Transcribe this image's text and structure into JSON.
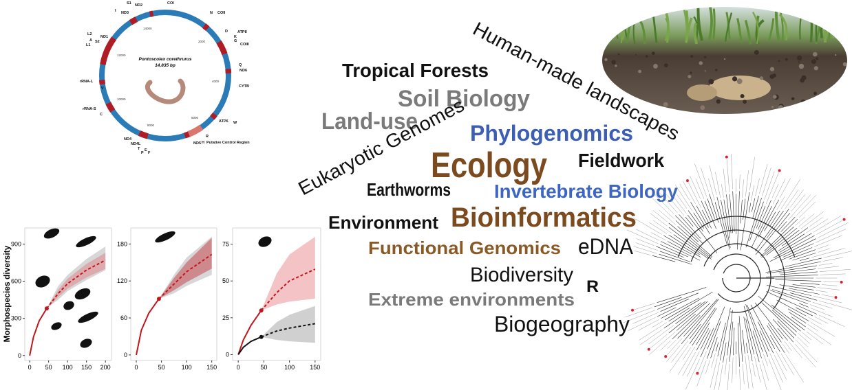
{
  "mitogenome": {
    "title": "Pontoscolex corethrurus",
    "length": "14,835 bp",
    "genes": [
      "COI",
      "N",
      "COII",
      "D",
      "ATP8",
      "K",
      "G",
      "COIII",
      "Q",
      "ND6",
      "CYTB",
      "ATP6",
      "W",
      "R",
      "Putative Control Region",
      "ND5",
      "H",
      "ND4",
      "ND4L",
      "T",
      "P",
      "E",
      "F",
      "C",
      "rRNA-S",
      "V",
      "rRNA-L",
      "L1",
      "A",
      "S2",
      "L2",
      "ND1",
      "I",
      "ND3",
      "S1",
      "ND2"
    ],
    "scale": [
      "14000",
      "2000",
      "4000",
      "6000",
      "8000",
      "10000",
      "12000"
    ]
  },
  "word_cloud": {
    "words": [
      {
        "text": "Human-made landscapes",
        "color": "#111111"
      },
      {
        "text": "Tropical Forests",
        "color": "#111111"
      },
      {
        "text": "Soil Biology",
        "color": "#7a7a7a"
      },
      {
        "text": "Land-use",
        "color": "#7a7a7a"
      },
      {
        "text": "Eukaryotic Genomes",
        "color": "#111111"
      },
      {
        "text": "Phylogenomics",
        "color": "#3d5fb3"
      },
      {
        "text": "Ecology",
        "color": "#7b4a1f"
      },
      {
        "text": "Fieldwork",
        "color": "#111111"
      },
      {
        "text": "Earthworms",
        "color": "#111111"
      },
      {
        "text": "Invertebrate Biology",
        "color": "#3d66c4"
      },
      {
        "text": "Environment",
        "color": "#111111"
      },
      {
        "text": "Bioinformatics",
        "color": "#7b4a1f"
      },
      {
        "text": "Functional Genomics",
        "color": "#8a5a26"
      },
      {
        "text": "eDNA",
        "color": "#111111"
      },
      {
        "text": "Biodiversity",
        "color": "#111111"
      },
      {
        "text": "R",
        "color": "#111111"
      },
      {
        "text": "Extreme environments",
        "color": "#7a7a7a"
      },
      {
        "text": "Biogeography",
        "color": "#111111"
      }
    ]
  },
  "rarefaction": {
    "ylabel": "Morphospecies diversity",
    "panels": [
      {
        "xlim": [
          -13,
          216
        ],
        "ylim": [
          -40,
          1030
        ],
        "xticks": [
          0,
          50,
          100,
          150,
          200
        ],
        "yticks": [
          0,
          300,
          600,
          900
        ],
        "series": [
          {
            "color": "#999999",
            "band_color": "#9a9a9a",
            "extrapolated": {
              "x": [
                45,
                75,
                100,
                150,
                200
              ],
              "lower": [
                380,
                450,
                520,
                610,
                690
              ],
              "upper": [
                380,
                560,
                650,
                780,
                880
              ]
            }
          },
          {
            "color": "#c0151b",
            "band_color": "#e06a70",
            "observed": {
              "x": [
                0,
                10,
                25,
                45
              ],
              "values": [
                0,
                150,
                280,
                380
              ]
            },
            "extrapolated": {
              "x": [
                45,
                75,
                100,
                150,
                200
              ],
              "values": [
                380,
                500,
                580,
                690,
                770
              ],
              "lower": [
                380,
                470,
                540,
                630,
                700
              ],
              "upper": [
                380,
                530,
                620,
                740,
                830
              ]
            }
          }
        ]
      },
      {
        "xlim": [
          -11,
          160
        ],
        "ylim": [
          -9,
          206
        ],
        "xticks": [
          0,
          50,
          100,
          150
        ],
        "yticks": [
          0,
          60,
          120,
          180
        ],
        "series": [
          {
            "color": "#999999",
            "band_color": "#9a9a9a",
            "extrapolated": {
              "x": [
                45,
                75,
                100,
                150
              ],
              "lower": [
                91,
                100,
                112,
                130
              ],
              "upper": [
                91,
                130,
                158,
                192
              ]
            }
          },
          {
            "color": "#c0151b",
            "band_color": "#c0151b",
            "observed": {
              "x": [
                0,
                10,
                25,
                45
              ],
              "values": [
                0,
                40,
                68,
                91
              ]
            },
            "extrapolated": {
              "x": [
                45,
                75,
                100,
                150
              ],
              "values": [
                91,
                115,
                135,
                163
              ],
              "lower": [
                91,
                105,
                118,
                140
              ],
              "upper": [
                91,
                125,
                150,
                190
              ]
            }
          }
        ]
      },
      {
        "xlim": [
          -11,
          161
        ],
        "ylim": [
          -4,
          86
        ],
        "xticks": [
          0,
          50,
          100,
          150
        ],
        "yticks": [
          0,
          25,
          50,
          75
        ],
        "series": [
          {
            "color": "#c0151b",
            "band_color": "#e06a70",
            "observed": {
              "x": [
                0,
                10,
                25,
                45
              ],
              "values": [
                0,
                10,
                20,
                30
              ]
            },
            "extrapolated": {
              "x": [
                45,
                75,
                100,
                150
              ],
              "values": [
                30,
                42,
                50,
                58
              ],
              "lower": [
                30,
                34,
                36,
                38
              ],
              "upper": [
                30,
                55,
                68,
                80
              ]
            }
          },
          {
            "color": "#111111",
            "band_color": "#8a8a8a",
            "observed": {
              "x": [
                0,
                10,
                25,
                45
              ],
              "values": [
                0,
                5,
                9,
                12
              ]
            },
            "extrapolated": {
              "x": [
                45,
                75,
                100,
                150
              ],
              "values": [
                12,
                16,
                18,
                21
              ],
              "lower": [
                12,
                10,
                9,
                8
              ],
              "upper": [
                12,
                22,
                27,
                33
              ]
            }
          }
        ]
      }
    ]
  }
}
